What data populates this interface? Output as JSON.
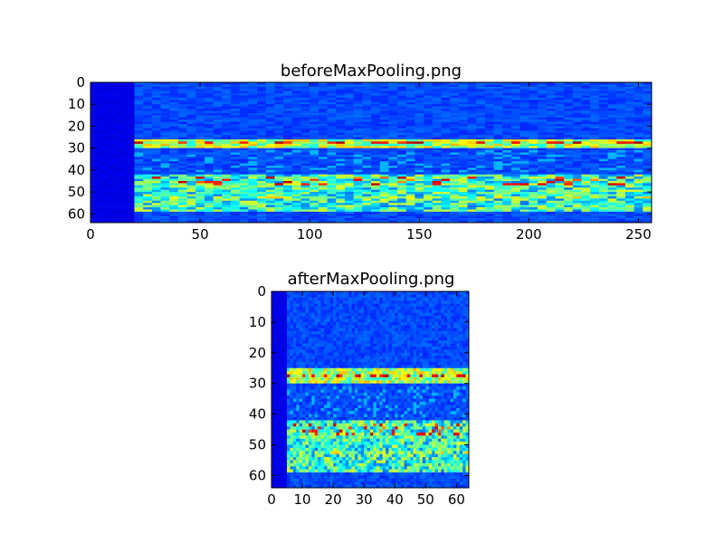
{
  "chart_data": [
    {
      "type": "heatmap",
      "title": "beforeMaxPooling.png",
      "xlim": [
        0,
        256
      ],
      "ylim": [
        64,
        0
      ],
      "x_ticks": [
        "0",
        "50",
        "100",
        "150",
        "200",
        "250"
      ],
      "y_ticks": [
        "0",
        "10",
        "20",
        "30",
        "40",
        "50",
        "60"
      ],
      "x_tick_values": [
        0,
        50,
        100,
        150,
        200,
        250
      ],
      "y_tick_values": [
        0,
        10,
        20,
        30,
        40,
        50,
        60
      ],
      "colormap": "jet",
      "grid": false,
      "features": {
        "silent_until_x": 21,
        "bright_band_rows": [
          26,
          29
        ],
        "mid_band_rows": [
          42,
          58
        ],
        "hotspot_rows": [
          27,
          44,
          52
        ]
      }
    },
    {
      "type": "heatmap",
      "title": "afterMaxPooling.png",
      "xlim": [
        0,
        64
      ],
      "ylim": [
        64,
        0
      ],
      "x_ticks": [
        "0",
        "10",
        "20",
        "30",
        "40",
        "50",
        "60"
      ],
      "y_ticks": [
        "0",
        "10",
        "20",
        "30",
        "40",
        "50",
        "60"
      ],
      "x_tick_values": [
        0,
        10,
        20,
        30,
        40,
        50,
        60
      ],
      "y_tick_values": [
        0,
        10,
        20,
        30,
        40,
        50,
        60
      ],
      "colormap": "jet",
      "grid": false,
      "features": {
        "silent_until_x": 5,
        "bright_band_rows": [
          25,
          29
        ],
        "mid_band_rows": [
          42,
          58
        ],
        "hotspot_rows": [
          27,
          44,
          52
        ]
      }
    }
  ]
}
